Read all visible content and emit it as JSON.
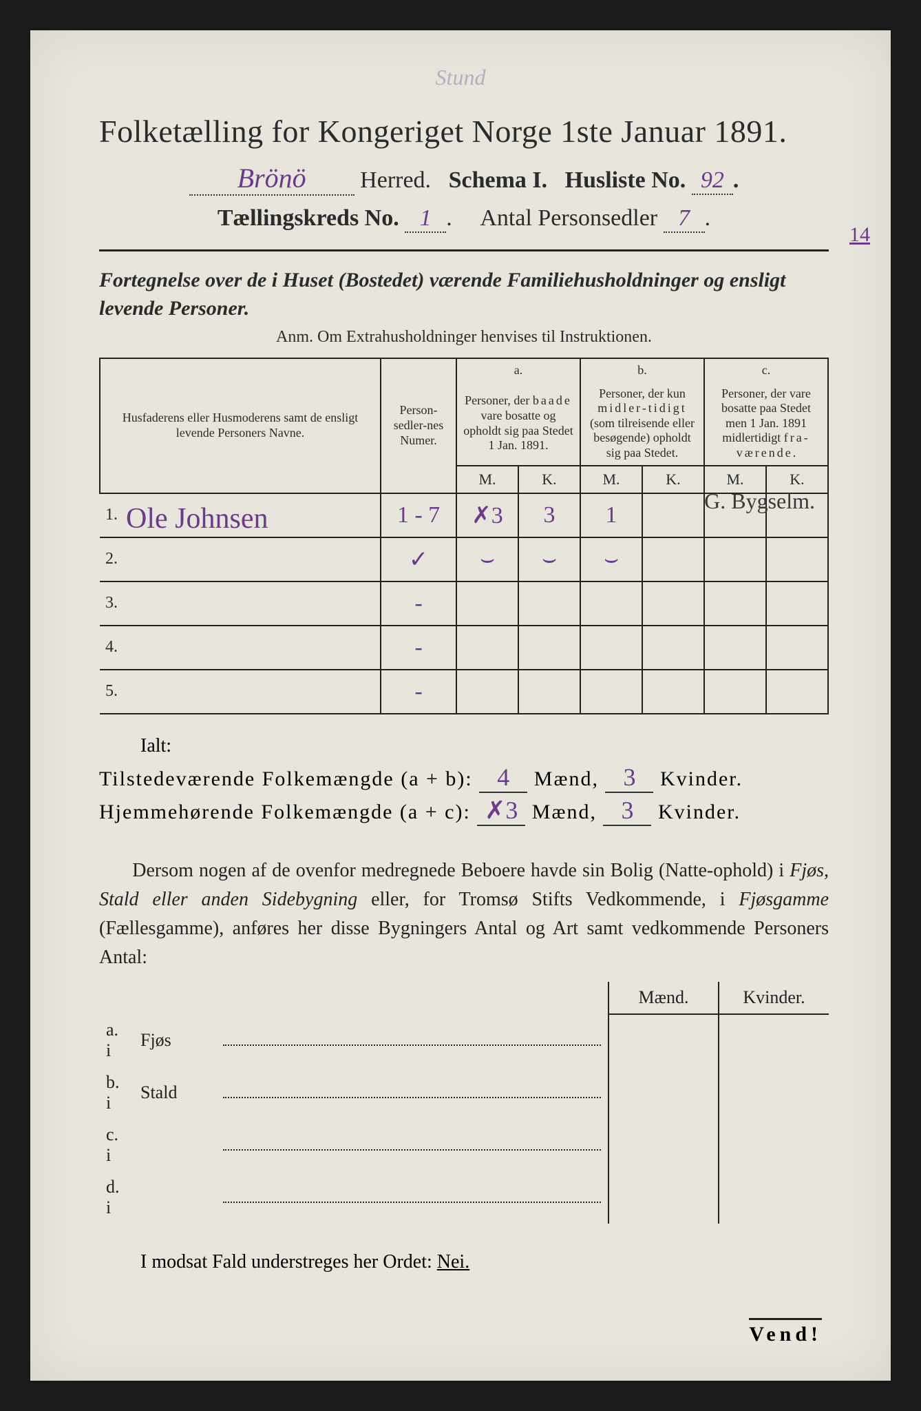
{
  "faint_top": "Stund",
  "title": "Folketælling for Kongeriget Norge 1ste Januar 1891.",
  "herred_hand": "Brönö",
  "herred_label": "Herred.",
  "schema_label": "Schema I.",
  "husliste_label": "Husliste No.",
  "husliste_no": "92",
  "taellingskreds_label": "Tællingskreds No.",
  "taellingskreds_no": "1",
  "antal_label": "Antal Personsedler",
  "antal_val": "7",
  "margin_note": "14",
  "subtitle": "Fortegnelse over de i Huset (Bostedet) værende Familiehusholdninger og ensligt levende Personer.",
  "anm": "Anm.  Om Extrahusholdninger henvises til Instruktionen.",
  "headers": {
    "name": "Husfaderens eller Husmoderens samt de ensligt levende Personers Navne.",
    "num": "Person-sedler-nes Numer.",
    "a_top": "a.",
    "a": "Personer, der baade vare bosatte og opholdt sig paa Stedet 1 Jan. 1891.",
    "b_top": "b.",
    "b": "Personer, der kun midlertidigt (som tilreisende eller besøgende) opholdt sig paa Stedet.",
    "c_top": "c.",
    "c": "Personer, der vare bosatte paa Stedet men 1 Jan. 1891 midlertidigt fraværende.",
    "m": "M.",
    "k": "K."
  },
  "rows": [
    {
      "n": "1.",
      "name": "Ole Johnsen",
      "num": "1 - 7",
      "aM": "✗3",
      "aK": "3",
      "bM": "1",
      "bK": "",
      "cM": "",
      "cK": ""
    },
    {
      "n": "2.",
      "name": "",
      "num": "✓",
      "aM": "⌣",
      "aK": "⌣",
      "bM": "⌣",
      "bK": "",
      "cM": "",
      "cK": ""
    },
    {
      "n": "3.",
      "name": "",
      "num": "-",
      "aM": "",
      "aK": "",
      "bM": "",
      "bK": "",
      "cM": "",
      "cK": ""
    },
    {
      "n": "4.",
      "name": "",
      "num": "-",
      "aM": "",
      "aK": "",
      "bM": "",
      "bK": "",
      "cM": "",
      "cK": ""
    },
    {
      "n": "5.",
      "name": "",
      "num": "-",
      "aM": "",
      "aK": "",
      "bM": "",
      "bK": "",
      "cM": "",
      "cK": ""
    }
  ],
  "side_note": "G. Bygselm.",
  "ialt": "Ialt:",
  "tot1_label_a": "Tilstedeværende Folkemængde (a + b):",
  "tot1_m": "4",
  "tot1_mlabel": "Mænd,",
  "tot1_k": "3",
  "tot1_klabel": "Kvinder.",
  "tot2_label_a": "Hjemmehørende Folkemængde (a + c):",
  "tot2_m": "✗3",
  "tot2_k": "3",
  "para": "Dersom nogen af de ovenfor medregnede Beboere havde sin Bolig (Natte-ophold) i Fjøs, Stald eller anden Sidebygning eller, for Tromsø Stifts Vedkommende, i Fjøsgamme (Fællesgamme), anføres her disse Bygningers Antal og Art samt vedkommende Personers Antal:",
  "bottom_headers": {
    "m": "Mænd.",
    "k": "Kvinder."
  },
  "bottom_rows": [
    {
      "lab": "a.  i",
      "type": "Fjøs"
    },
    {
      "lab": "b.  i",
      "type": "Stald"
    },
    {
      "lab": "c.  i",
      "type": ""
    },
    {
      "lab": "d.  i",
      "type": ""
    }
  ],
  "nei_line": "I modsat Fald understreges her Ordet: ",
  "nei": "Nei.",
  "vend": "Vend!",
  "colors": {
    "paper": "#e8e6dc",
    "ink": "#2b2b2b",
    "handwriting": "#6b3a8a"
  }
}
